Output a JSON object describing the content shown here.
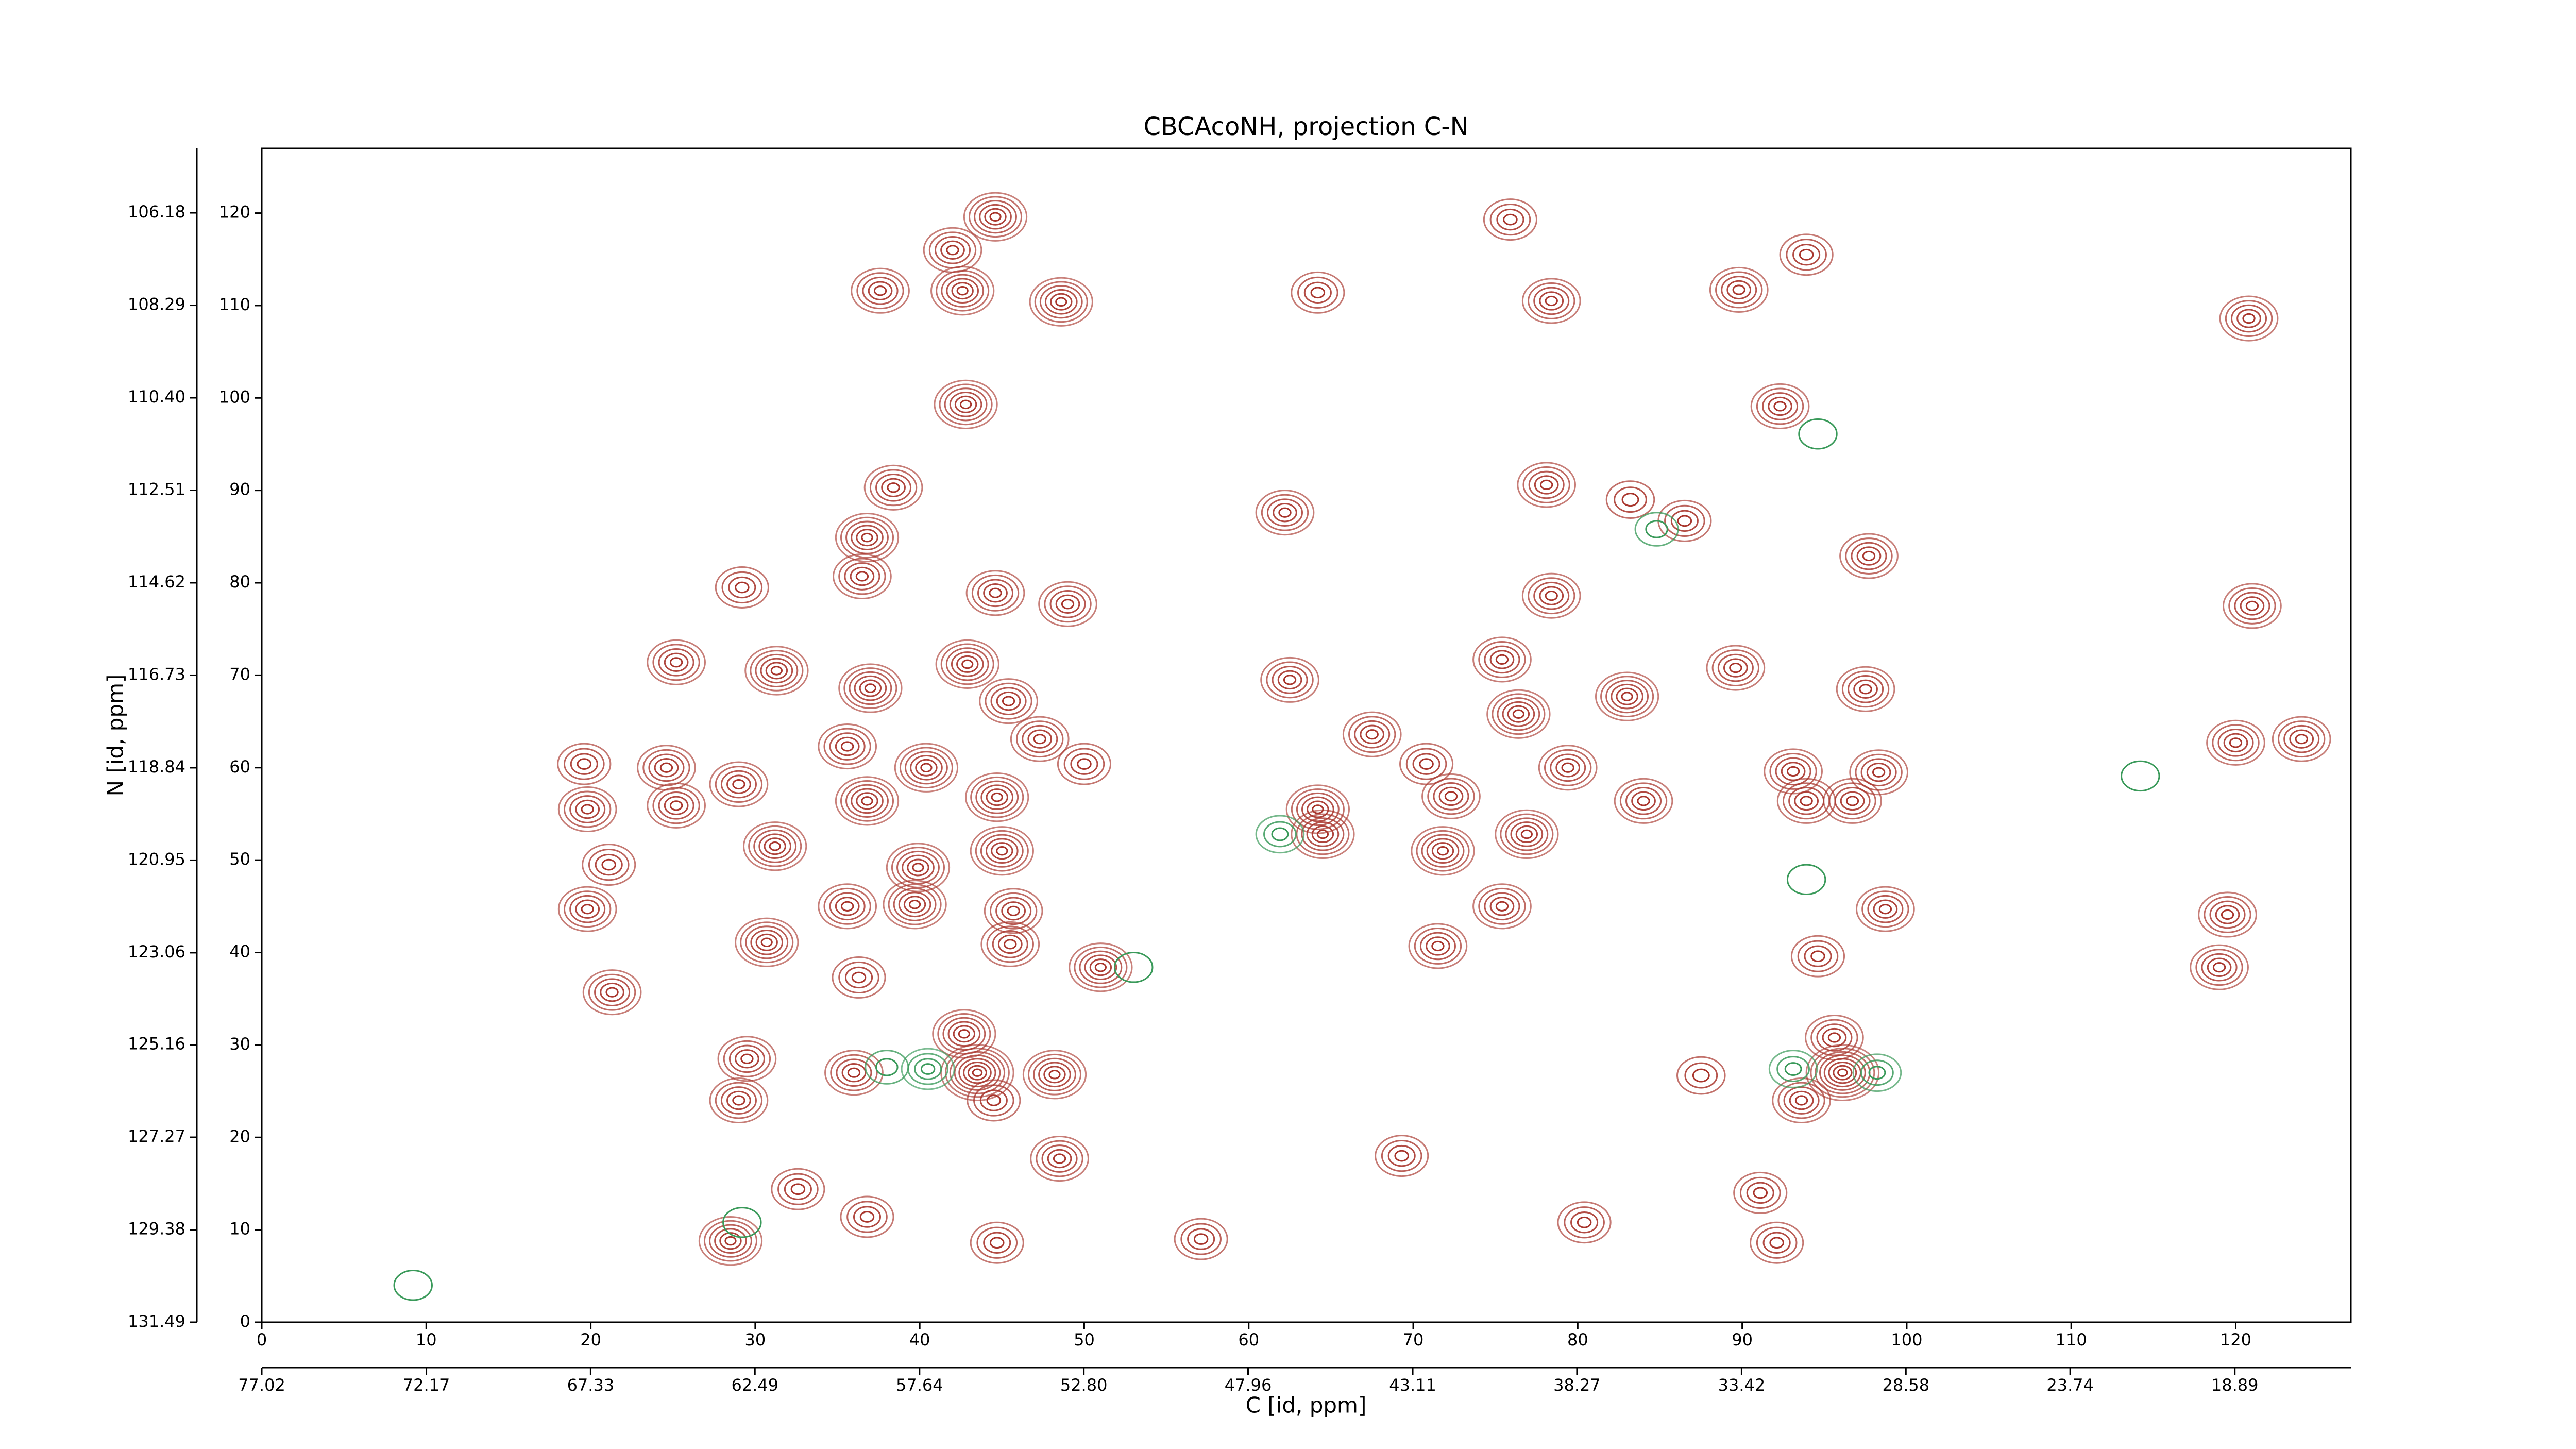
{
  "chart_data": {
    "type": "contour",
    "title": "CBCAcoNH, projection C-N",
    "xlabel": "C [id, ppm]",
    "ylabel": "N [id, ppm]",
    "xlim": [
      0,
      127
    ],
    "xticks": [
      0,
      10,
      20,
      30,
      40,
      50,
      60,
      70,
      80,
      90,
      100,
      110,
      120
    ],
    "ylim": [
      0,
      127
    ],
    "yticks": [
      0,
      10,
      20,
      30,
      40,
      50,
      60,
      70,
      80,
      90,
      100,
      110,
      120
    ],
    "x2lim": [
      77.02,
      15.47
    ],
    "x2ticks": [
      77.02,
      72.17,
      67.33,
      62.49,
      57.64,
      {
        "value": 52.8,
        "label": "52.80"
      },
      47.96,
      43.11,
      38.27,
      33.42,
      28.58,
      23.74,
      18.89
    ],
    "y2lim": [
      131.49,
      104.71
    ],
    "y2ticks": [
      106.18,
      108.29,
      {
        "value": 110.4,
        "label": "110.40"
      },
      112.51,
      114.62,
      116.73,
      118.84,
      120.95,
      123.06,
      125.16,
      127.27,
      129.38,
      131.49
    ],
    "series": [
      {
        "color": "#a8352c",
        "x": [
          44.6,
          42,
          37.6,
          42.6,
          48.6,
          42.8,
          38.4,
          36.8,
          36.5,
          29.2,
          44.6,
          49,
          25.2,
          31.3,
          37,
          42.9,
          45.4,
          47.3,
          35.6,
          50,
          40.4,
          24.6,
          19.6,
          29,
          25.2,
          19.8,
          36.8,
          44.7,
          31.2,
          45,
          21.1,
          39.9,
          35.6,
          39.7,
          45.7,
          19.8,
          30.7,
          45.5,
          51,
          36.3,
          21.3,
          42.7,
          43.5,
          36,
          48.2,
          29.5,
          29,
          44.5,
          48.5,
          32.6,
          28.5,
          36.8,
          44.7,
          78.4,
          89.8,
          93.9,
          75.9,
          120.8,
          92.3,
          78.1,
          62.2,
          83.2,
          86.5,
          97.7,
          78.4,
          121,
          75.4,
          83,
          89.6,
          97.5,
          62.5,
          67.5,
          76.4,
          70.8,
          79.4,
          93.1,
          98.3,
          120,
          124,
          64.2,
          64.5,
          72.3,
          76.9,
          71.8,
          84,
          93.9,
          96.7,
          75.4,
          98.7,
          119.5,
          71.5,
          94.6,
          119,
          95.6,
          96.1,
          93.6,
          87.5,
          69.3,
          80.4,
          92.1,
          91.1,
          57.1,
          64.2
        ],
        "y": [
          119.6,
          116,
          111.6,
          111.6,
          110.4,
          99.3,
          90.3,
          84.9,
          80.7,
          79.5,
          78.9,
          77.7,
          71.4,
          70.5,
          68.6,
          71.2,
          67.2,
          63.1,
          62.3,
          60.4,
          60,
          60,
          60.4,
          58.2,
          55.9,
          55.5,
          56.4,
          56.8,
          51.5,
          51,
          49.5,
          49.2,
          45,
          45.2,
          44.5,
          44.7,
          41.1,
          40.9,
          38.4,
          37.3,
          35.7,
          31.2,
          27,
          27,
          26.8,
          28.5,
          24,
          24,
          17.7,
          14.4,
          8.8,
          11.4,
          8.6,
          110.5,
          111.7,
          115.5,
          119.3,
          108.6,
          99.1,
          90.6,
          87.6,
          89,
          86.7,
          82.9,
          78.6,
          77.5,
          71.7,
          67.7,
          70.8,
          68.5,
          69.5,
          63.6,
          65.8,
          60.4,
          60,
          59.6,
          59.5,
          62.7,
          63.1,
          55.5,
          52.8,
          56.9,
          52.8,
          51,
          56.4,
          56.4,
          56.4,
          45,
          44.7,
          44.1,
          40.7,
          39.6,
          38.4,
          30.8,
          27,
          24,
          26.7,
          18,
          10.8,
          8.6,
          14,
          9,
          111.4
        ],
        "levels": [
          6,
          5,
          5,
          6,
          6,
          6,
          5,
          6,
          5,
          4,
          5,
          5,
          5,
          6,
          6,
          6,
          5,
          5,
          5,
          4,
          6,
          5,
          4,
          5,
          5,
          5,
          6,
          6,
          6,
          6,
          4,
          6,
          5,
          6,
          5,
          5,
          6,
          5,
          6,
          4,
          5,
          6,
          8,
          5,
          6,
          5,
          5,
          4,
          5,
          4,
          6,
          4,
          4,
          5,
          5,
          4,
          4,
          5,
          5,
          5,
          5,
          3,
          4,
          5,
          5,
          5,
          5,
          6,
          5,
          5,
          5,
          5,
          6,
          4,
          5,
          5,
          5,
          5,
          5,
          6,
          6,
          5,
          6,
          6,
          5,
          5,
          5,
          5,
          5,
          5,
          5,
          4,
          5,
          5,
          8,
          5,
          3,
          4,
          4,
          4,
          4,
          4,
          4
        ]
      },
      {
        "color": "#3a9a5a",
        "x": [
          40.5,
          38,
          93.1,
          98.2,
          61.9,
          84.8,
          94.6,
          53,
          29.2,
          9.2,
          114.2,
          93.9
        ],
        "y": [
          27.4,
          27.6,
          27.4,
          27,
          52.8,
          85.8,
          96.1,
          38.4,
          10.8,
          4,
          59.1,
          47.9
        ],
        "levels": [
          4,
          2,
          3,
          3,
          3,
          2,
          1,
          1,
          1,
          1,
          1,
          1
        ]
      }
    ]
  }
}
